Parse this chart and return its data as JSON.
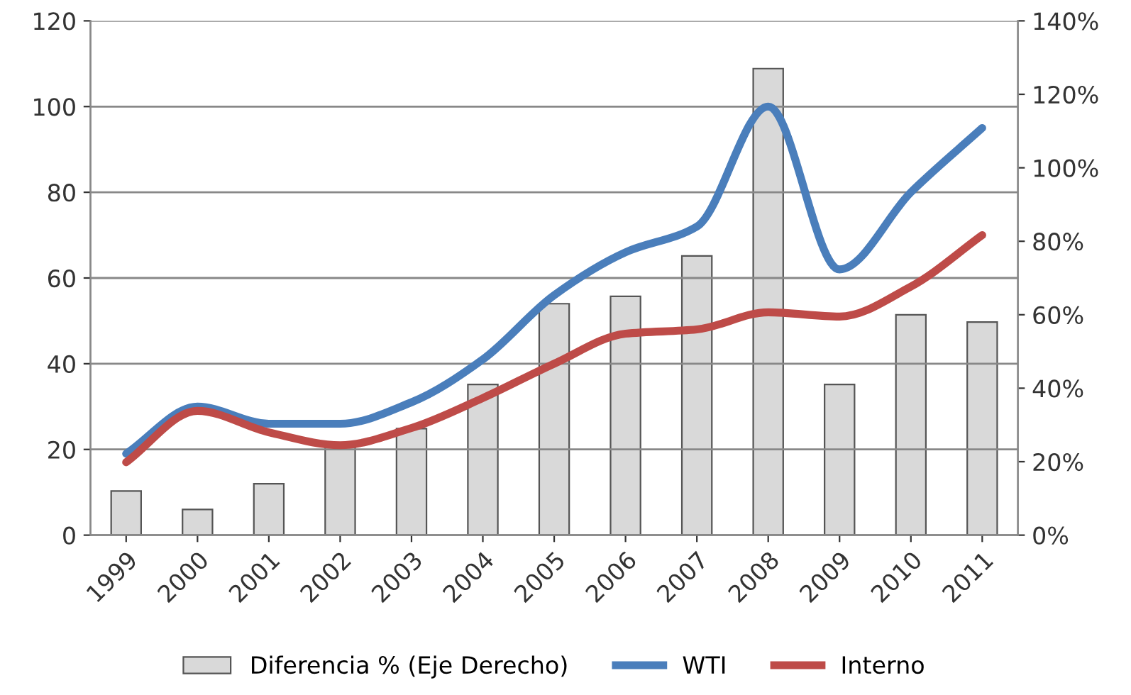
{
  "chart_data": {
    "type": "bar",
    "categories": [
      "1999",
      "2000",
      "2001",
      "2002",
      "2003",
      "2004",
      "2005",
      "2006",
      "2007",
      "2008",
      "2009",
      "2010",
      "2011"
    ],
    "series": [
      {
        "name": "Diferencia % (Eje Derecho)",
        "axis": "y2",
        "color": "#d9d9d9",
        "values": [
          12,
          7,
          14,
          24,
          29,
          41,
          63,
          65,
          76,
          127,
          41,
          60,
          58
        ]
      },
      {
        "name": "WTI",
        "type": "line",
        "color": "#4a7ebb",
        "values": [
          19,
          30,
          26,
          26,
          31,
          41,
          56,
          66,
          72,
          100,
          62,
          80,
          95
        ]
      },
      {
        "name": "Interno",
        "type": "line",
        "color": "#be4b48",
        "values": [
          17,
          29,
          24,
          21,
          25,
          32,
          40,
          47,
          48,
          52,
          51,
          58,
          70
        ]
      }
    ],
    "ylim": [
      0,
      120
    ],
    "yticks": [
      0,
      20,
      40,
      60,
      80,
      100,
      120
    ],
    "y2lim": [
      0,
      140
    ],
    "y2ticks": [
      {
        "value": 0,
        "label": "0%"
      },
      {
        "value": 20,
        "label": "20%"
      },
      {
        "value": 40,
        "label": "40%"
      },
      {
        "value": 60,
        "label": "60%"
      },
      {
        "value": 80,
        "label": "80%"
      },
      {
        "value": 100,
        "label": "100%"
      },
      {
        "value": 120,
        "label": "120%"
      },
      {
        "value": 140,
        "label": "140%"
      }
    ],
    "grid": "y",
    "legend": "bottom"
  }
}
